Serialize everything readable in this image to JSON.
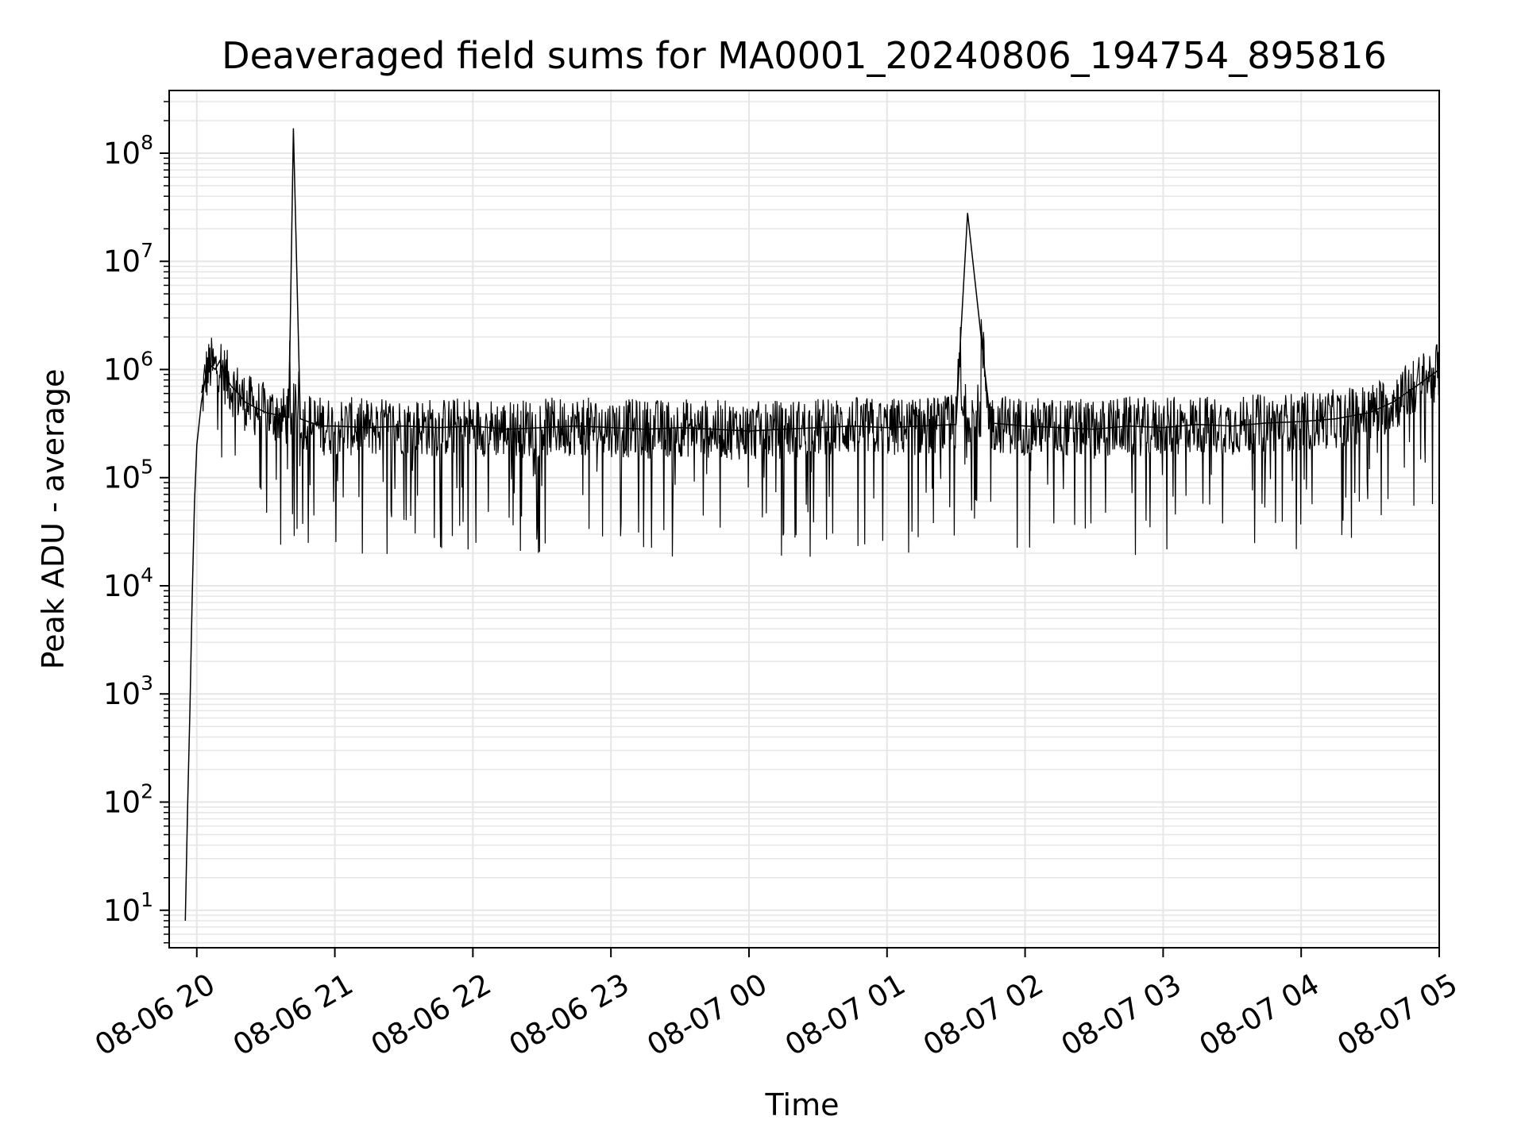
{
  "chart_data": {
    "type": "line",
    "title": "Deaveraged field sums for MA0001_20240806_194754_895816",
    "xlabel": "Time",
    "ylabel": "Peak ADU - average",
    "yscale": "log",
    "grid": true,
    "legend": "none",
    "line_color": "#000000",
    "grid_color": "#e6e6e6",
    "xlim": [
      "2024-08-06 19:48",
      "2024-08-07 05:00"
    ],
    "ylim": [
      4.5,
      380000000
    ],
    "x_ticks": [
      "2024-08-06 20:00",
      "2024-08-06 21:00",
      "2024-08-06 22:00",
      "2024-08-06 23:00",
      "2024-08-07 00:00",
      "2024-08-07 01:00",
      "2024-08-07 02:00",
      "2024-08-07 03:00",
      "2024-08-07 04:00",
      "2024-08-07 05:00"
    ],
    "x_tick_labels": [
      "08-06 20",
      "08-06 21",
      "08-06 22",
      "08-06 23",
      "08-07 00",
      "08-07 01",
      "08-07 02",
      "08-07 03",
      "08-07 04",
      "08-07 05"
    ],
    "y_ticks": [
      10,
      100,
      1000,
      10000,
      100000,
      1000000,
      10000000,
      100000000
    ],
    "y_tick_labels": [
      {
        "base": "10",
        "exp": "1"
      },
      {
        "base": "10",
        "exp": "2"
      },
      {
        "base": "10",
        "exp": "3"
      },
      {
        "base": "10",
        "exp": "4"
      },
      {
        "base": "10",
        "exp": "5"
      },
      {
        "base": "10",
        "exp": "6"
      },
      {
        "base": "10",
        "exp": "7"
      },
      {
        "base": "10",
        "exp": "8"
      }
    ],
    "series": [
      {
        "x": [
          "2024-08-06 19:55",
          "2024-08-06 19:56",
          "2024-08-06 19:57",
          "2024-08-06 19:58",
          "2024-08-06 19:59",
          "2024-08-06 20:00",
          "2024-08-06 20:02",
          "2024-08-06 20:04",
          "2024-08-06 20:06",
          "2024-08-06 20:08",
          "2024-08-06 20:10",
          "2024-08-06 20:12",
          "2024-08-06 20:15",
          "2024-08-06 20:18",
          "2024-08-06 20:21",
          "2024-08-06 20:25",
          "2024-08-06 20:30",
          "2024-08-06 20:35",
          "2024-08-06 20:40",
          "2024-08-06 20:42",
          "2024-08-06 20:45",
          "2024-08-06 20:50",
          "2024-08-06 20:55",
          "2024-08-06 21:00",
          "2024-08-06 21:15",
          "2024-08-06 21:30",
          "2024-08-06 21:45",
          "2024-08-06 22:00",
          "2024-08-06 22:15",
          "2024-08-06 22:30",
          "2024-08-06 22:45",
          "2024-08-06 23:00",
          "2024-08-06 23:15",
          "2024-08-06 23:30",
          "2024-08-06 23:45",
          "2024-08-07 00:00",
          "2024-08-07 00:15",
          "2024-08-07 00:30",
          "2024-08-07 00:45",
          "2024-08-07 01:00",
          "2024-08-07 01:15",
          "2024-08-07 01:30",
          "2024-08-07 01:32",
          "2024-08-07 01:35",
          "2024-08-07 01:45",
          "2024-08-07 02:00",
          "2024-08-07 02:15",
          "2024-08-07 02:30",
          "2024-08-07 02:45",
          "2024-08-07 03:00",
          "2024-08-07 03:15",
          "2024-08-07 03:30",
          "2024-08-07 03:45",
          "2024-08-07 04:00",
          "2024-08-07 04:15",
          "2024-08-07 04:30",
          "2024-08-07 04:40",
          "2024-08-07 04:50",
          "2024-08-07 05:00"
        ],
        "y": [
          8,
          90,
          700,
          8000,
          60000,
          200000,
          500000,
          900000,
          1100000,
          1000000,
          1200000,
          900000,
          700000,
          600000,
          500000,
          450000,
          400000,
          380000,
          360000,
          170000000,
          350000,
          320000,
          300000,
          300000,
          290000,
          300000,
          290000,
          300000,
          280000,
          290000,
          300000,
          290000,
          280000,
          290000,
          280000,
          270000,
          280000,
          290000,
          300000,
          290000,
          300000,
          310000,
          2000000,
          28000000,
          320000,
          300000,
          290000,
          280000,
          300000,
          290000,
          310000,
          300000,
          320000,
          330000,
          350000,
          400000,
          500000,
          700000,
          1000000
        ]
      }
    ]
  }
}
